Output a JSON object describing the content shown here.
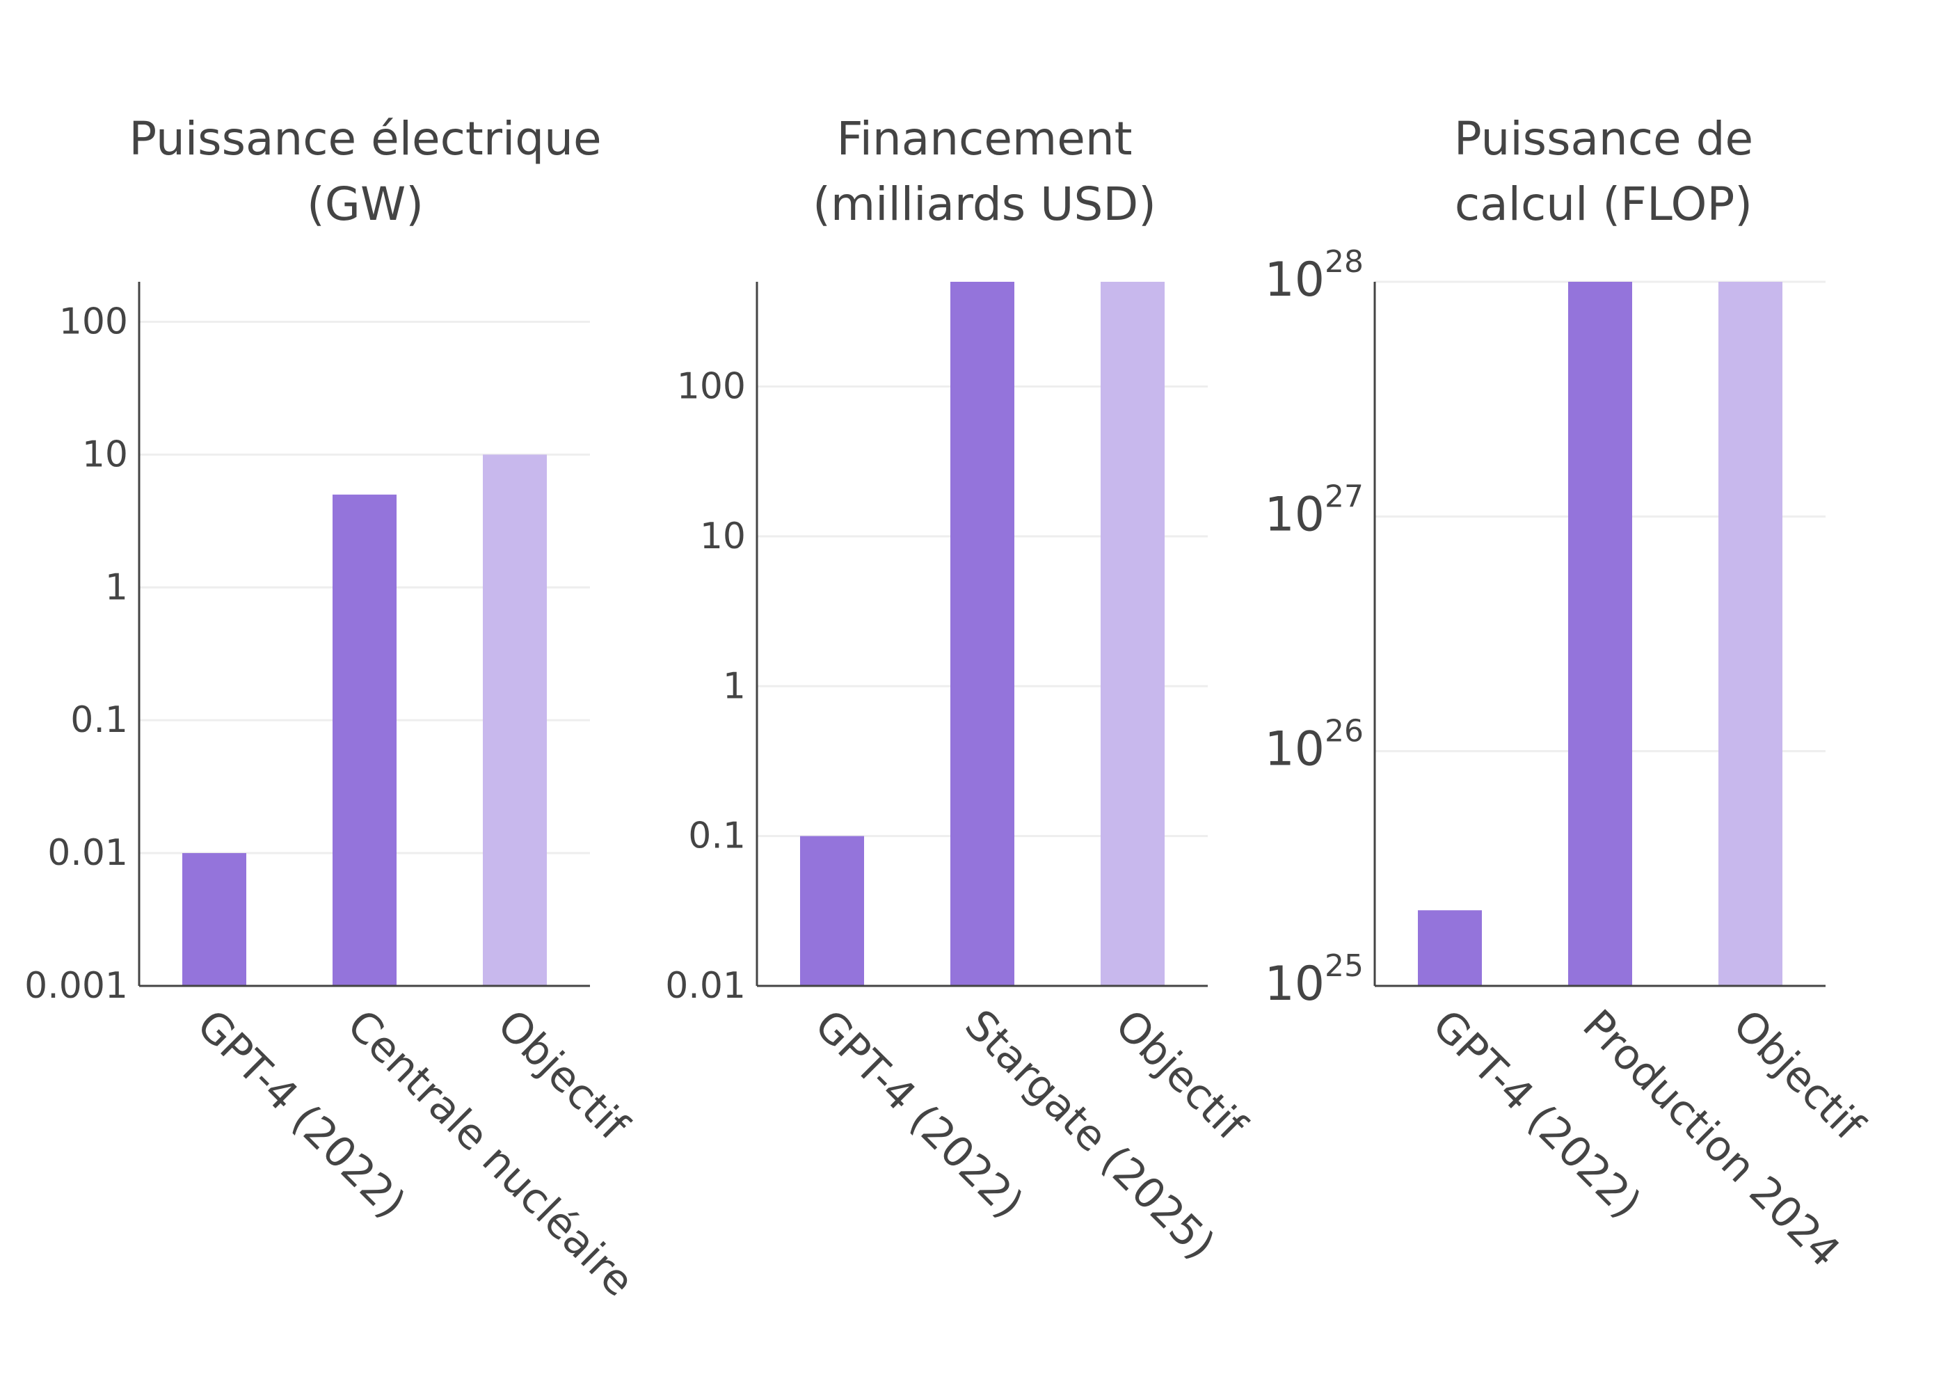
{
  "colors": {
    "bar": "#9474db",
    "bar_target": "#c8b8ed",
    "axis": "#444444",
    "grid": "#eeeeee",
    "text": "#444444"
  },
  "chart_data": [
    {
      "type": "bar",
      "title_lines": [
        "Puissance électrique",
        "(GW)"
      ],
      "yscale": "log",
      "ylim": [
        0.001,
        200
      ],
      "yticks": [
        0.001,
        0.01,
        0.1,
        1,
        10,
        100
      ],
      "ytick_labels": [
        "0.001",
        "0.01",
        "0.1",
        "1",
        "10",
        "100"
      ],
      "categories": [
        "GPT-4 (2022)",
        "Centrale nucléaire",
        "Objectif"
      ],
      "values": [
        0.01,
        5,
        10
      ],
      "highlight_last": true,
      "grid": true,
      "legend": "none"
    },
    {
      "type": "bar",
      "title_lines": [
        "Financement",
        "(milliards USD)"
      ],
      "yscale": "log",
      "ylim": [
        0.01,
        500
      ],
      "yticks": [
        0.01,
        0.1,
        1,
        10,
        100
      ],
      "ytick_labels": [
        "0.01",
        "0.1",
        "1",
        "10",
        "100"
      ],
      "categories": [
        "GPT-4 (2022)",
        "Stargate (2025)",
        "Objectif"
      ],
      "values": [
        0.1,
        500,
        500
      ],
      "highlight_last": true,
      "grid": true,
      "legend": "none"
    },
    {
      "type": "bar",
      "title_lines": [
        "Puissance de",
        "calcul (FLOP)"
      ],
      "yscale": "log",
      "ylim": [
        1e+25,
        1e+28
      ],
      "yticks": [
        1e+25,
        1e+26,
        1e+27,
        1e+28
      ],
      "ytick_labels": [
        {
          "base": "10",
          "exp": "25"
        },
        {
          "base": "10",
          "exp": "26"
        },
        {
          "base": "10",
          "exp": "27"
        },
        {
          "base": "10",
          "exp": "28"
        }
      ],
      "categories": [
        "GPT-4 (2022)",
        "Production 2024",
        "Objectif"
      ],
      "values": [
        2.1e+25,
        1e+28,
        1e+28
      ],
      "highlight_last": true,
      "grid": true,
      "legend": "none"
    }
  ]
}
